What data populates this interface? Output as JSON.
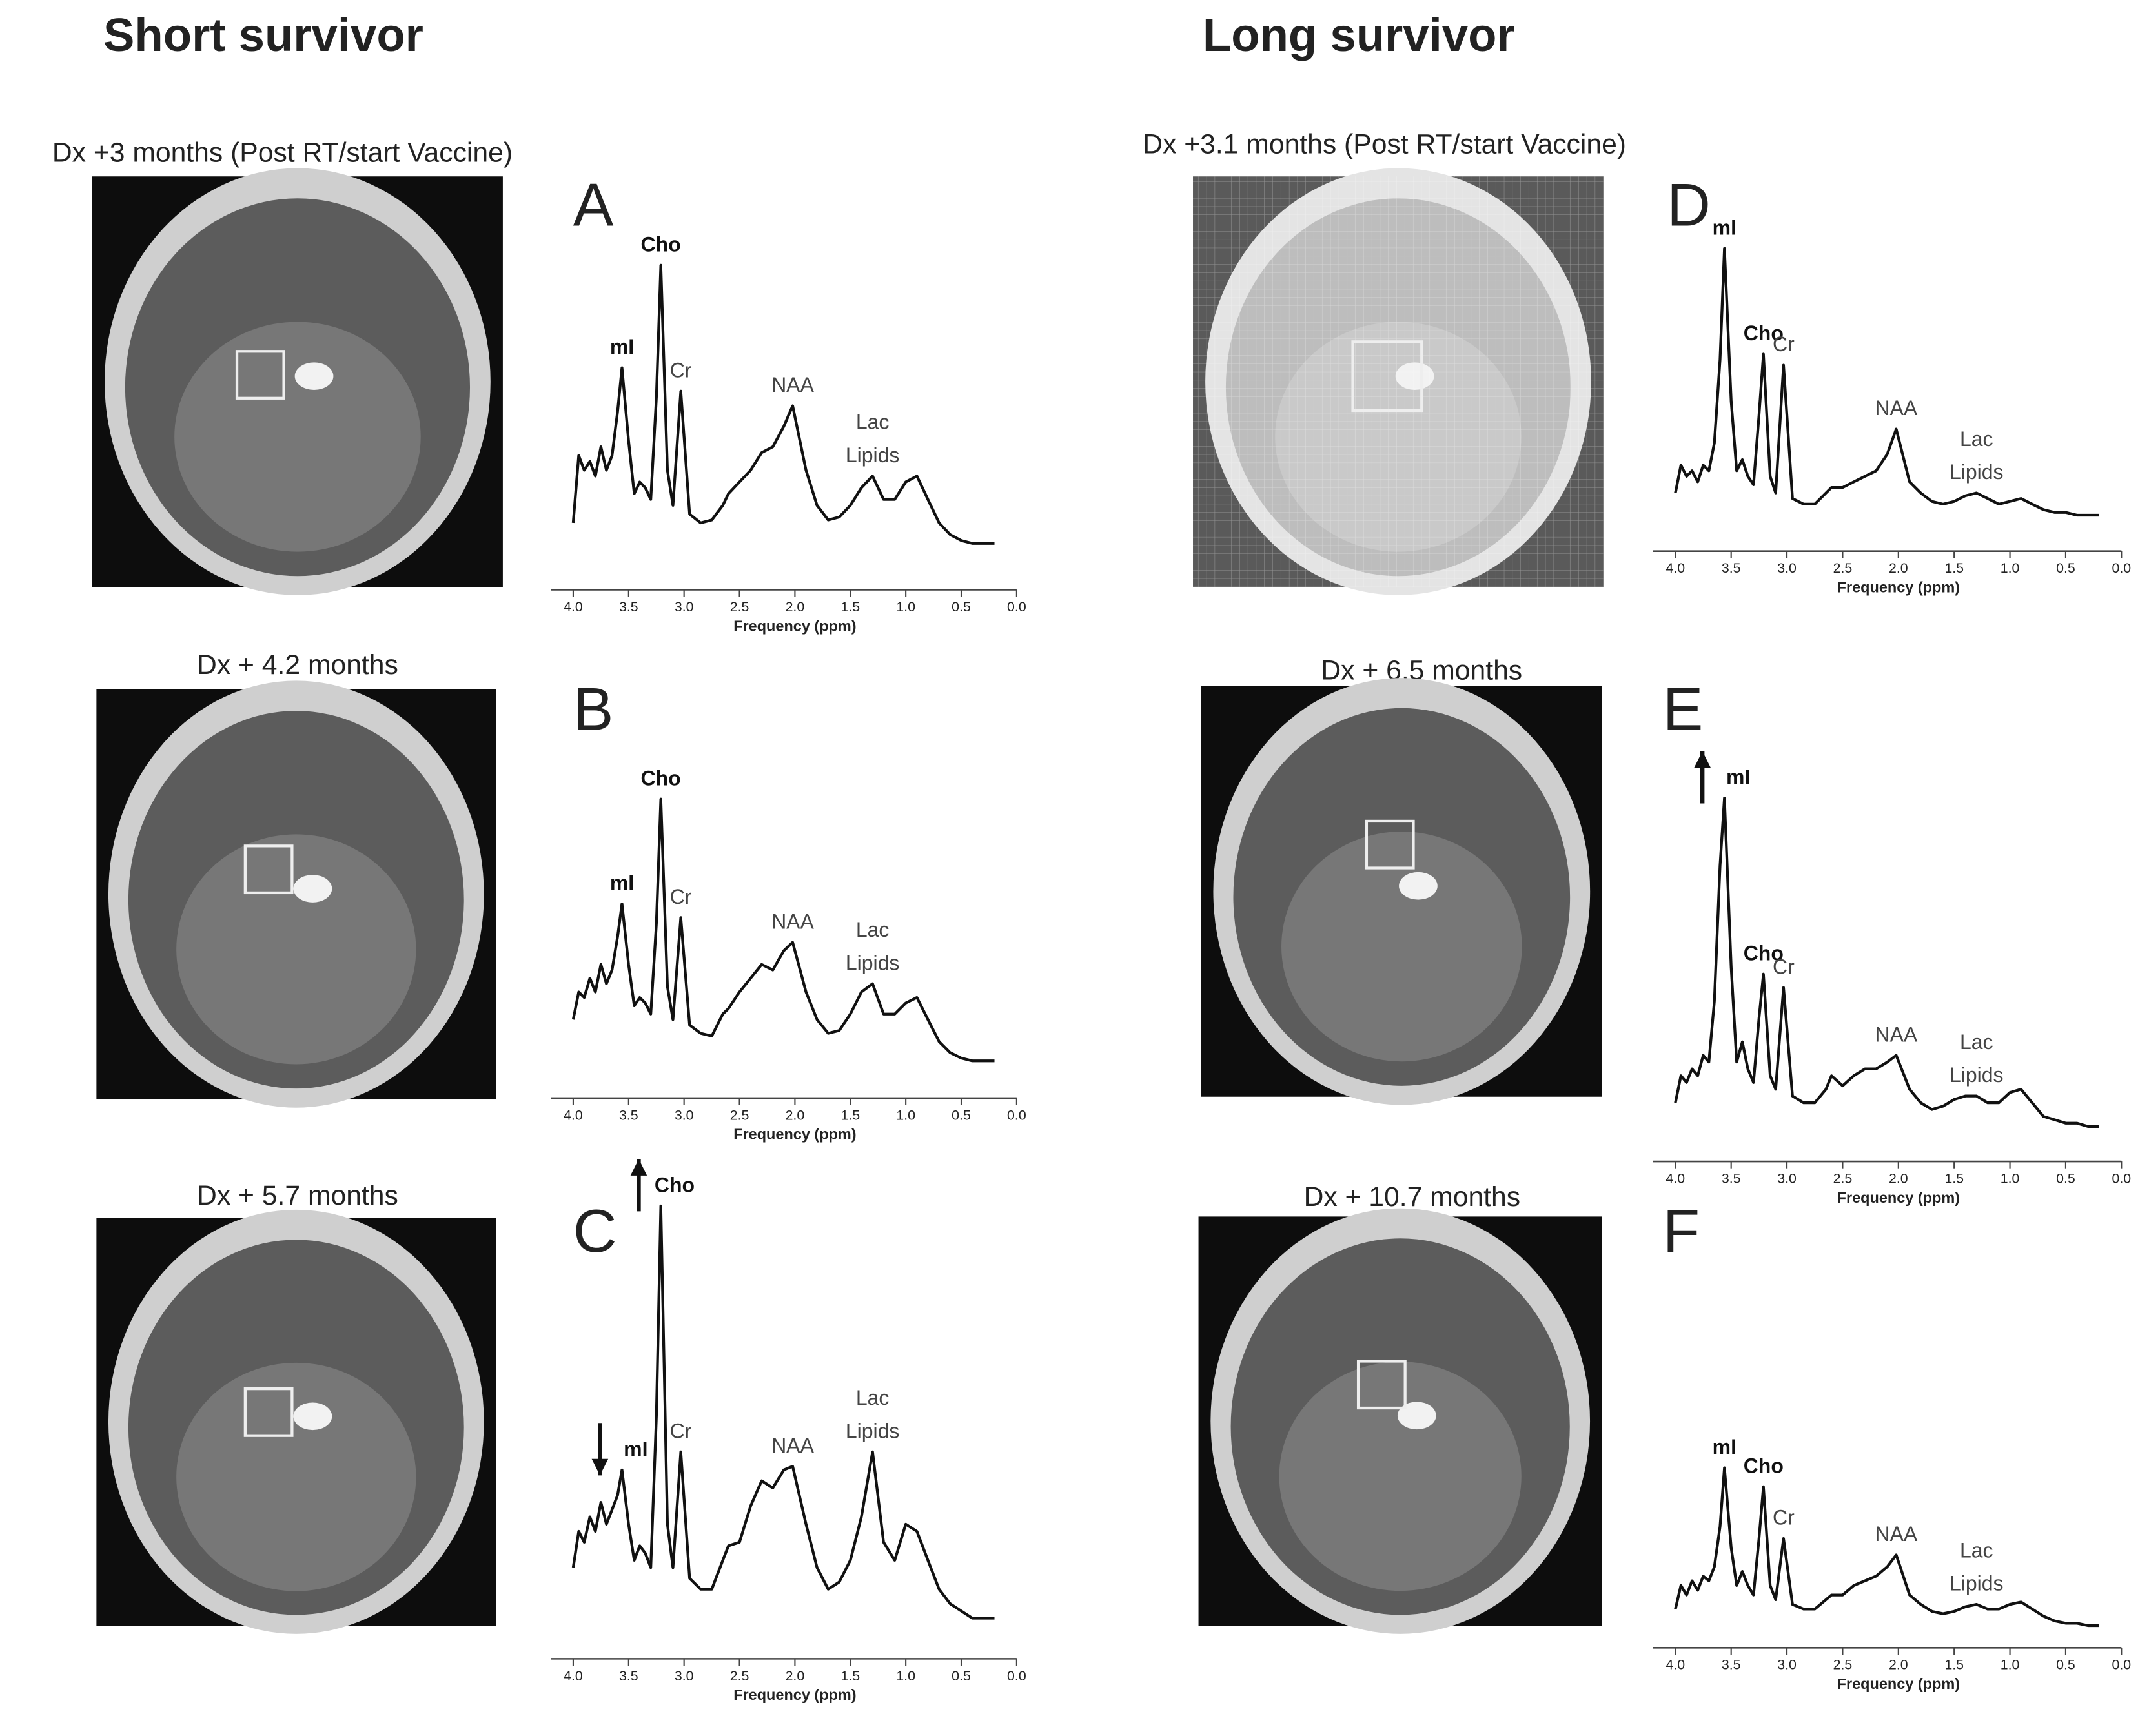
{
  "figure": {
    "columns": [
      {
        "title": "Short survivor",
        "captions": [
          "Dx +3 months (Post RT/start Vaccine)",
          "Dx + 4.2 months",
          "Dx + 5.7 months"
        ]
      },
      {
        "title": "Long survivor",
        "captions": [
          "Dx +3.1 months (Post RT/start Vaccine)",
          "Dx + 6.5 months",
          "Dx + 10.7 months"
        ]
      }
    ]
  },
  "chart_data": [
    {
      "type": "line",
      "label": "A",
      "xlabel": "Frequency (ppm)",
      "color": "#111111",
      "xlim": [
        4.2,
        0
      ],
      "ylim": [
        0,
        120
      ],
      "xticks": [
        {
          "value": 4,
          "label": "4.0"
        },
        3.5,
        {
          "value": 3,
          "label": "3.0"
        },
        2.5,
        {
          "value": 2,
          "label": "2.0"
        },
        1.5,
        {
          "value": 1,
          "label": "1.0"
        },
        0.5,
        {
          "value": 0,
          "label": "0.0"
        }
      ],
      "x": [
        4.0,
        3.95,
        3.9,
        3.85,
        3.8,
        3.75,
        3.7,
        3.65,
        3.6,
        3.56,
        3.5,
        3.45,
        3.4,
        3.35,
        3.3,
        3.25,
        3.21,
        3.15,
        3.1,
        3.03,
        2.95,
        2.85,
        2.75,
        2.65,
        2.6,
        2.5,
        2.4,
        2.3,
        2.2,
        2.1,
        2.02,
        1.9,
        1.8,
        1.7,
        1.6,
        1.5,
        1.4,
        1.3,
        1.2,
        1.1,
        1.0,
        0.9,
        0.8,
        0.7,
        0.6,
        0.5,
        0.4,
        0.3,
        0.2
      ],
      "values": [
        12,
        35,
        30,
        33,
        28,
        38,
        30,
        35,
        50,
        65,
        40,
        22,
        26,
        24,
        20,
        55,
        100,
        30,
        18,
        57,
        15,
        12,
        13,
        18,
        22,
        26,
        30,
        36,
        38,
        45,
        52,
        30,
        18,
        13,
        14,
        18,
        24,
        28,
        20,
        20,
        26,
        28,
        20,
        12,
        8,
        6,
        5,
        5,
        5
      ],
      "annotations": [
        {
          "text": "mI",
          "x": 3.56,
          "bold": true
        },
        {
          "text": "Cho",
          "x": 3.21,
          "bold": true
        },
        {
          "text": "Cr",
          "x": 3.03
        },
        {
          "text": "NAA",
          "x": 2.02
        },
        {
          "text": "Lac",
          "x": 1.3
        },
        {
          "text": "Lipids",
          "x": 1.3
        }
      ]
    },
    {
      "type": "line",
      "label": "B",
      "xlabel": "Frequency (ppm)",
      "color": "#111111",
      "xlim": [
        4.2,
        0
      ],
      "ylim": [
        0,
        120
      ],
      "xticks": [
        {
          "value": 4,
          "label": "4.0"
        },
        3.5,
        {
          "value": 3,
          "label": "3.0"
        },
        2.5,
        {
          "value": 2,
          "label": "2.0"
        },
        1.5,
        {
          "value": 1,
          "label": "1.0"
        },
        0.5,
        {
          "value": 0,
          "label": "0.0"
        }
      ],
      "x": [
        4.0,
        3.95,
        3.9,
        3.85,
        3.8,
        3.75,
        3.7,
        3.65,
        3.6,
        3.56,
        3.5,
        3.45,
        3.4,
        3.35,
        3.3,
        3.25,
        3.21,
        3.15,
        3.1,
        3.03,
        2.95,
        2.85,
        2.75,
        2.65,
        2.6,
        2.5,
        2.4,
        2.3,
        2.2,
        2.1,
        2.02,
        1.9,
        1.8,
        1.7,
        1.6,
        1.5,
        1.4,
        1.3,
        1.2,
        1.1,
        1.0,
        0.9,
        0.8,
        0.7,
        0.6,
        0.5,
        0.4,
        0.3,
        0.2
      ],
      "values": [
        20,
        30,
        28,
        35,
        30,
        40,
        33,
        38,
        50,
        62,
        40,
        25,
        28,
        26,
        22,
        55,
        100,
        32,
        20,
        57,
        18,
        15,
        14,
        22,
        24,
        30,
        35,
        40,
        38,
        45,
        48,
        30,
        20,
        15,
        16,
        22,
        30,
        33,
        22,
        22,
        26,
        28,
        20,
        12,
        8,
        6,
        5,
        5,
        5
      ],
      "annotations": [
        {
          "text": "mI",
          "x": 3.56,
          "bold": true
        },
        {
          "text": "Cho",
          "x": 3.21,
          "bold": true
        },
        {
          "text": "Cr",
          "x": 3.03
        },
        {
          "text": "NAA",
          "x": 2.02
        },
        {
          "text": "Lac",
          "x": 1.3
        },
        {
          "text": "Lipids",
          "x": 1.3
        }
      ]
    },
    {
      "type": "line",
      "label": "C",
      "xlabel": "Frequency (ppm)",
      "color": "#111111",
      "xlim": [
        4.2,
        0
      ],
      "ylim": [
        0,
        120
      ],
      "xticks": [
        {
          "value": 4,
          "label": "4.0"
        },
        3.5,
        {
          "value": 3,
          "label": "3.0"
        },
        2.5,
        {
          "value": 2,
          "label": "2.0"
        },
        1.5,
        {
          "value": 1,
          "label": "1.0"
        },
        0.5,
        {
          "value": 0,
          "label": "0.0"
        }
      ],
      "x": [
        4.0,
        3.95,
        3.9,
        3.85,
        3.8,
        3.75,
        3.7,
        3.65,
        3.6,
        3.56,
        3.5,
        3.45,
        3.4,
        3.35,
        3.3,
        3.25,
        3.21,
        3.15,
        3.1,
        3.03,
        2.95,
        2.85,
        2.75,
        2.65,
        2.6,
        2.5,
        2.4,
        2.3,
        2.2,
        2.1,
        2.02,
        1.9,
        1.8,
        1.7,
        1.6,
        1.5,
        1.4,
        1.3,
        1.2,
        1.1,
        1.0,
        0.9,
        0.8,
        0.7,
        0.6,
        0.5,
        0.4,
        0.3,
        0.2
      ],
      "values": [
        18,
        28,
        25,
        32,
        28,
        36,
        30,
        34,
        38,
        45,
        30,
        20,
        24,
        22,
        18,
        60,
        118,
        30,
        18,
        50,
        15,
        12,
        12,
        20,
        24,
        25,
        35,
        42,
        40,
        45,
        46,
        30,
        18,
        12,
        14,
        20,
        32,
        50,
        25,
        20,
        30,
        28,
        20,
        12,
        8,
        6,
        4,
        4,
        4
      ],
      "annotations": [
        {
          "text": "mI",
          "x": 3.56,
          "bold": true,
          "arrow": "down"
        },
        {
          "text": "Cho",
          "x": 3.21,
          "bold": true,
          "arrow": "up"
        },
        {
          "text": "Cr",
          "x": 3.03
        },
        {
          "text": "NAA",
          "x": 2.02
        },
        {
          "text": "Lac",
          "x": 1.3
        },
        {
          "text": "Lipids",
          "x": 1.3
        }
      ]
    },
    {
      "type": "line",
      "label": "D",
      "xlabel": "Frequency (ppm)",
      "color": "#111111",
      "xlim": [
        4.2,
        0
      ],
      "ylim": [
        0,
        120
      ],
      "xticks": [
        {
          "value": 4,
          "label": "4.0"
        },
        3.5,
        {
          "value": 3,
          "label": "3.0"
        },
        2.5,
        {
          "value": 2,
          "label": "2.0"
        },
        1.5,
        {
          "value": 1,
          "label": "1.0"
        },
        0.5,
        {
          "value": 0,
          "label": "0.0"
        }
      ],
      "x": [
        4.0,
        3.95,
        3.9,
        3.85,
        3.8,
        3.75,
        3.7,
        3.65,
        3.6,
        3.56,
        3.5,
        3.45,
        3.4,
        3.35,
        3.3,
        3.25,
        3.21,
        3.15,
        3.1,
        3.03,
        2.95,
        2.85,
        2.75,
        2.65,
        2.6,
        2.5,
        2.4,
        2.3,
        2.2,
        2.1,
        2.02,
        1.9,
        1.8,
        1.7,
        1.6,
        1.5,
        1.4,
        1.3,
        1.2,
        1.1,
        1.0,
        0.9,
        0.8,
        0.7,
        0.6,
        0.5,
        0.4,
        0.3,
        0.2
      ],
      "values": [
        12,
        22,
        18,
        20,
        16,
        22,
        20,
        30,
        60,
        100,
        45,
        20,
        24,
        18,
        15,
        40,
        62,
        18,
        12,
        58,
        10,
        8,
        8,
        12,
        14,
        14,
        16,
        18,
        20,
        26,
        35,
        16,
        12,
        9,
        8,
        9,
        11,
        12,
        10,
        8,
        9,
        10,
        8,
        6,
        5,
        5,
        4,
        4,
        4
      ],
      "annotations": [
        {
          "text": "mI",
          "x": 3.56,
          "bold": true
        },
        {
          "text": "Cho",
          "x": 3.21,
          "bold": true
        },
        {
          "text": "Cr",
          "x": 3.03
        },
        {
          "text": "NAA",
          "x": 2.02
        },
        {
          "text": "Lac",
          "x": 1.3
        },
        {
          "text": "Lipids",
          "x": 1.3
        }
      ]
    },
    {
      "type": "line",
      "label": "E",
      "xlabel": "Frequency (ppm)",
      "color": "#111111",
      "xlim": [
        4.2,
        0
      ],
      "ylim": [
        0,
        120
      ],
      "xticks": [
        {
          "value": 4,
          "label": "4.0"
        },
        3.5,
        {
          "value": 3,
          "label": "3.0"
        },
        2.5,
        {
          "value": 2,
          "label": "2.0"
        },
        1.5,
        {
          "value": 1,
          "label": "1.0"
        },
        0.5,
        {
          "value": 0,
          "label": "0.0"
        }
      ],
      "x": [
        4.0,
        3.95,
        3.9,
        3.85,
        3.8,
        3.75,
        3.7,
        3.65,
        3.6,
        3.56,
        3.5,
        3.45,
        3.4,
        3.35,
        3.3,
        3.25,
        3.21,
        3.15,
        3.1,
        3.03,
        2.95,
        2.85,
        2.75,
        2.65,
        2.6,
        2.5,
        2.4,
        2.3,
        2.2,
        2.1,
        2.02,
        1.9,
        1.8,
        1.7,
        1.6,
        1.5,
        1.4,
        1.3,
        1.2,
        1.1,
        1.0,
        0.9,
        0.8,
        0.7,
        0.6,
        0.5,
        0.4,
        0.3,
        0.2
      ],
      "values": [
        10,
        18,
        16,
        20,
        18,
        24,
        22,
        40,
        80,
        100,
        50,
        22,
        28,
        20,
        16,
        35,
        48,
        18,
        14,
        44,
        12,
        10,
        10,
        14,
        18,
        15,
        18,
        20,
        20,
        22,
        24,
        14,
        10,
        8,
        9,
        11,
        12,
        12,
        10,
        10,
        13,
        14,
        10,
        6,
        5,
        4,
        4,
        3,
        3
      ],
      "annotations": [
        {
          "text": "mI",
          "x": 3.56,
          "bold": true,
          "arrow": "up"
        },
        {
          "text": "Cho",
          "x": 3.21,
          "bold": true
        },
        {
          "text": "Cr",
          "x": 3.03
        },
        {
          "text": "NAA",
          "x": 2.02
        },
        {
          "text": "Lac",
          "x": 1.3
        },
        {
          "text": "Lipids",
          "x": 1.3
        }
      ]
    },
    {
      "type": "line",
      "label": "F",
      "xlabel": "Frequency (ppm)",
      "color": "#111111",
      "xlim": [
        4.2,
        0
      ],
      "ylim": [
        0,
        120
      ],
      "xticks": [
        {
          "value": 4,
          "label": "4.0"
        },
        3.5,
        {
          "value": 3,
          "label": "3.0"
        },
        2.5,
        {
          "value": 2,
          "label": "2.0"
        },
        1.5,
        {
          "value": 1,
          "label": "1.0"
        },
        0.5,
        {
          "value": 0,
          "label": "0.0"
        }
      ],
      "x": [
        4.0,
        3.95,
        3.9,
        3.85,
        3.8,
        3.75,
        3.7,
        3.65,
        3.6,
        3.56,
        3.5,
        3.45,
        3.4,
        3.35,
        3.3,
        3.25,
        3.21,
        3.15,
        3.1,
        3.03,
        2.95,
        2.85,
        2.75,
        2.65,
        2.6,
        2.5,
        2.4,
        2.3,
        2.2,
        2.1,
        2.02,
        1.9,
        1.8,
        1.7,
        1.6,
        1.5,
        1.4,
        1.3,
        1.2,
        1.1,
        1.0,
        0.9,
        0.8,
        0.7,
        0.6,
        0.5,
        0.4,
        0.3,
        0.2
      ],
      "values": [
        10,
        20,
        16,
        22,
        18,
        24,
        22,
        28,
        45,
        70,
        36,
        20,
        26,
        20,
        16,
        40,
        62,
        20,
        14,
        40,
        12,
        10,
        10,
        14,
        16,
        16,
        20,
        22,
        24,
        28,
        33,
        16,
        12,
        9,
        8,
        9,
        11,
        12,
        10,
        10,
        12,
        13,
        10,
        7,
        5,
        4,
        4,
        3,
        3
      ],
      "annotations": [
        {
          "text": "mI",
          "x": 3.56,
          "bold": true
        },
        {
          "text": "Cho",
          "x": 3.21,
          "bold": true
        },
        {
          "text": "Cr",
          "x": 3.03
        },
        {
          "text": "NAA",
          "x": 2.02
        },
        {
          "text": "Lac",
          "x": 1.3
        },
        {
          "text": "Lipids",
          "x": 1.3
        }
      ]
    }
  ]
}
